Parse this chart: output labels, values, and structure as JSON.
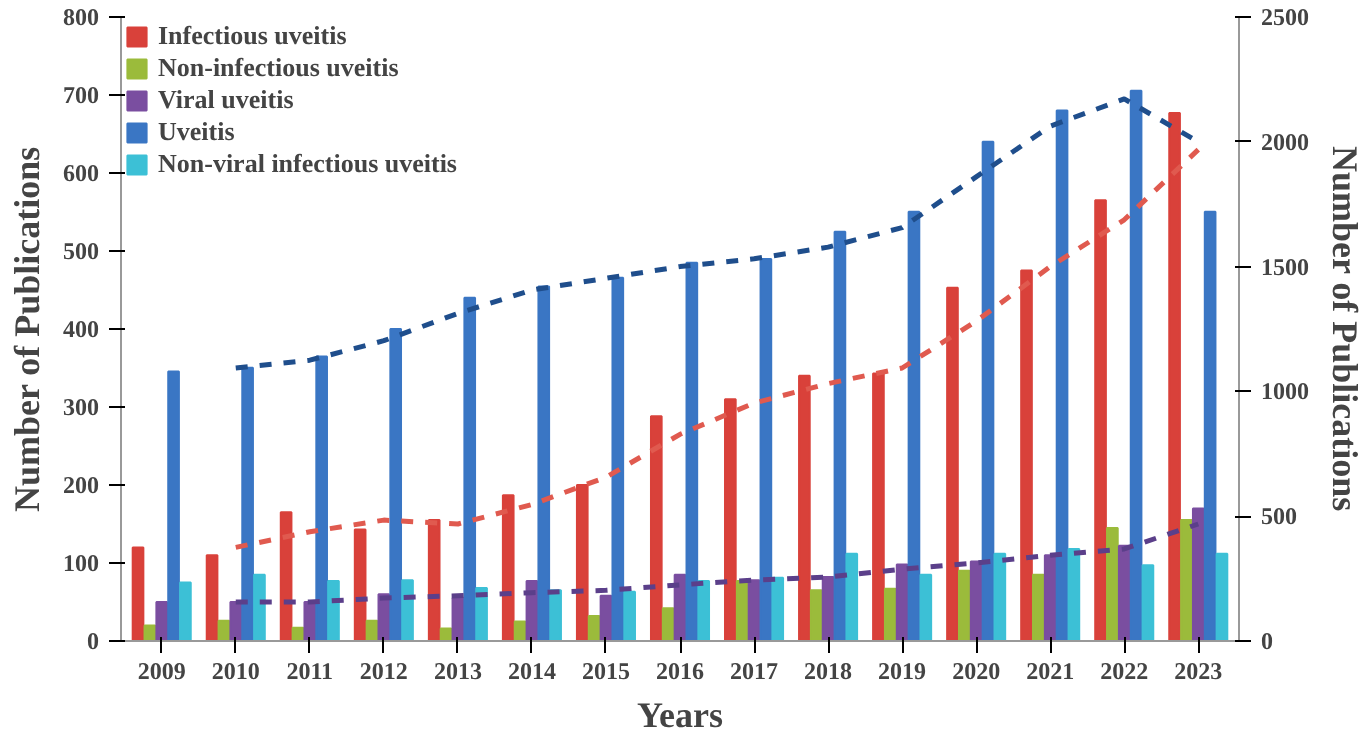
{
  "chart_data": {
    "type": "bar",
    "xlabel": "Years",
    "ylabel": "Number of Publications",
    "y2label": "Number of Publications",
    "categories": [
      "2009",
      "2010",
      "2011",
      "2012",
      "2013",
      "2014",
      "2015",
      "2016",
      "2017",
      "2018",
      "2019",
      "2020",
      "2021",
      "2022",
      "2023"
    ],
    "series": [
      {
        "name": "Infectious uveitis",
        "color": "#d9413a",
        "values": [
          120,
          110,
          165,
          143,
          155,
          187,
          200,
          288,
          310,
          340,
          343,
          453,
          475,
          565,
          677
        ]
      },
      {
        "name": "Non-infectious uveitis",
        "color": "#9bbb3b",
        "values": [
          20,
          26,
          17,
          26,
          16,
          25,
          32,
          42,
          77,
          65,
          67,
          90,
          85,
          145,
          155
        ]
      },
      {
        "name": "Viral uveitis",
        "color": "#7a4ea0",
        "values": [
          50,
          50,
          50,
          60,
          55,
          77,
          58,
          85,
          78,
          82,
          98,
          102,
          110,
          122,
          170
        ]
      },
      {
        "name": "Uveitis",
        "color": "#3a76c4",
        "axis": "y2",
        "values": [
          1080,
          1095,
          1140,
          1250,
          1375,
          1420,
          1455,
          1515,
          1530,
          1640,
          1720,
          2000,
          2125,
          2205,
          1720
        ]
      },
      {
        "name": "Non-viral infectious uveitis",
        "color": "#3cc0d6",
        "values": [
          75,
          85,
          77,
          78,
          68,
          65,
          63,
          77,
          81,
          112,
          85,
          112,
          118,
          97,
          112
        ]
      },
      {
        "type": "line",
        "color": "#1f4e8c",
        "line_style": "dashed",
        "values": [
          null,
          350,
          360,
          385,
          420,
          450,
          465,
          480,
          490,
          505,
          530,
          595,
          660,
          695,
          640
        ]
      },
      {
        "type": "line",
        "color": "#e05a4f",
        "line_style": "dashed",
        "values": [
          null,
          120,
          140,
          155,
          150,
          175,
          210,
          265,
          305,
          330,
          350,
          410,
          480,
          540,
          630
        ]
      },
      {
        "type": "line",
        "color": "#5b3f8a",
        "line_style": "dashed",
        "values": [
          null,
          50,
          50,
          55,
          58,
          62,
          65,
          72,
          78,
          82,
          92,
          100,
          110,
          118,
          150
        ]
      }
    ],
    "ylim": [
      0,
      800
    ],
    "yticks": [
      0,
      100,
      200,
      300,
      400,
      500,
      600,
      700,
      800
    ],
    "y2lim": [
      0,
      2500
    ],
    "y2ticks": [
      0,
      500,
      1000,
      1500,
      2000,
      2500
    ],
    "legend": "top left",
    "grid": false
  }
}
